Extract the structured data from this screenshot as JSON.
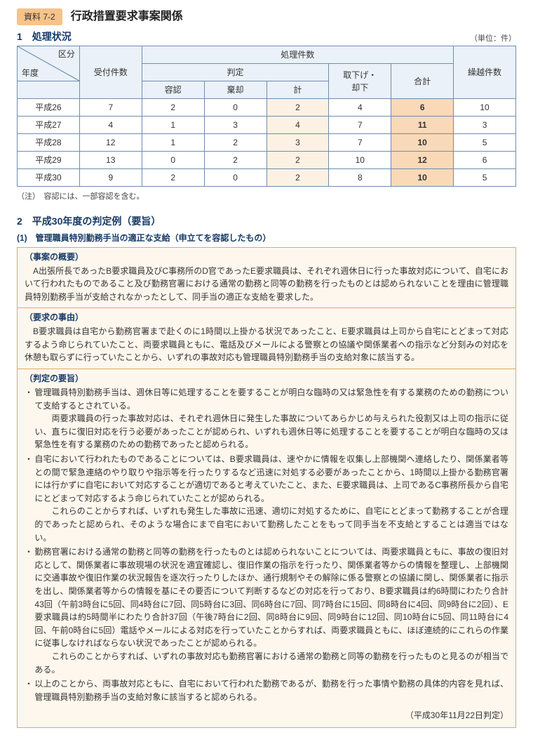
{
  "header": {
    "tag": "資料 7-2",
    "title": "行政措置要求事案関係"
  },
  "section1": {
    "title": "1　処理状況",
    "unit": "（単位：件）",
    "colHeaders": {
      "kubun": "区分",
      "nendo": "年度",
      "uketsuke": "受付件数",
      "shori": "処理件数",
      "hantei": "判定",
      "younin": "容認",
      "kikyaku": "棄却",
      "kei": "計",
      "torisage": "取下げ・\n却下",
      "goukei": "合計",
      "kurikoshi": "繰越件数"
    },
    "rows": [
      {
        "year": "平成26",
        "uketsuke": 7,
        "younin": 2,
        "kikyaku": 0,
        "kei": 2,
        "torisage": 4,
        "goukei": 6,
        "kurikoshi": 10
      },
      {
        "year": "平成27",
        "uketsuke": 4,
        "younin": 1,
        "kikyaku": 3,
        "kei": 4,
        "torisage": 7,
        "goukei": 11,
        "kurikoshi": 3
      },
      {
        "year": "平成28",
        "uketsuke": 12,
        "younin": 1,
        "kikyaku": 2,
        "kei": 3,
        "torisage": 7,
        "goukei": 10,
        "kurikoshi": 5
      },
      {
        "year": "平成29",
        "uketsuke": 13,
        "younin": 0,
        "kikyaku": 2,
        "kei": 2,
        "torisage": 10,
        "goukei": 12,
        "kurikoshi": 6
      },
      {
        "year": "平成30",
        "uketsuke": 9,
        "younin": 2,
        "kikyaku": 0,
        "kei": 2,
        "torisage": 8,
        "goukei": 10,
        "kurikoshi": 5
      }
    ],
    "note": "（注）　容認には、一部容認を含む。"
  },
  "section2": {
    "title": "2　平成30年度の判定例（要旨）",
    "sub": "(1)　管理職員特別勤務手当の適正な支給（申立てを容認したもの）",
    "case": {
      "h1": "（事案の概要）",
      "p1": "A出張所長であったB要求職員及びC事務所のD官であったE要求職員は、それぞれ週休日に行った事故対応について、自宅において行われたものであること及び勤務官署における通常の勤務と同等の勤務を行ったものとは認められないことを理由に管理職員特別勤務手当が支給されなかったとして、同手当の適正な支給を要求した。",
      "h2": "（要求の事由）",
      "p2": "B要求職員は自宅から勤務官署まで赴くのに1時間以上掛かる状況であったこと、E要求職員は上司から自宅にとどまって対応するよう命じられていたこと、両要求職員ともに、電話及びメールによる警察との協議や関係業者への指示など分刻みの対応を休憩も取らずに行っていたことから、いずれの事故対応も管理職員特別勤務手当の支給対象に該当する。",
      "h3": "（判定の要旨）",
      "bullets": [
        "管理職員特別勤務手当は、週休日等に処理することを要することが明白な臨時の又は緊急性を有する業務のための勤務について支給するとされている。\n　両要求職員の行った事故対応は、それぞれ週休日に発生した事故についてあらかじめ与えられた役割又は上司の指示に従い、直ちに復旧対応を行う必要があったことが認められ、いずれも週休日等に処理することを要することが明白な臨時の又は緊急性を有する業務のための勤務であったと認められる。",
        "自宅において行われたものであることについては、B要求職員は、速やかに情報を収集し上部機関へ連絡したり、関係業者等との間で緊急連絡のやり取りや指示等を行ったりするなど迅速に対処する必要があったことから、1時間以上掛かる勤務官署には行かずに自宅において対応することが適切であると考えていたこと、また、E要求職員は、上司であるC事務所長から自宅にとどまって対応するよう命じられていたことが認められる。\n　これらのことからすれば、いずれも発生した事故に迅速、適切に対処するために、自宅にとどまって勤務することが合理的であったと認められ、そのような場合にまで自宅において勤務したことをもって同手当を不支給とすることは適当ではない。",
        "勤務官署における通常の勤務と同等の勤務を行ったものとは認められないことについては、両要求職員ともに、事故の復旧対応として、関係業者に事故現場の状況を適宜確認し、復旧作業の指示を行ったり、関係業者等からの情報を整理し、上部機関に交通事故や復旧作業の状況報告を逐次行ったりしたほか、通行規制やその解除に係る警察との協議に関し、関係業者に指示を出し、関係業者等からの情報を基にその要否について判断するなどの対応を行っており、B要求職員は約6時間にわたり合計43回（午前3時台に5回、同4時台に7回、同5時台に3回、同6時台に7回、同7時台に15回、同8時台に4回、同9時台に2回）、E要求職員は約5時間半にわたり合計37回（午後7時台に2回、同8時台に9回、同9時台に12回、同10時台に5回、同11時台に4回、午前0時台に5回）電話やメールによる対応を行っていたことからすれば、両要求職員ともに、ほぼ連続的にこれらの作業に従事しなければならない状況であったことが認められる。\n　これらのことからすれば、いずれの事故対応も勤務官署における通常の勤務と同等の勤務を行ったものと見るのが相当である。",
        "以上のことから、両事故対応ともに、自宅において行われた勤務であるが、勤務を行った事情や勤務の具体的内容を見れば、管理職員特別勤務手当の支給対象に該当すると認められる。"
      ],
      "date": "（平成30年11月22日判定）"
    }
  }
}
